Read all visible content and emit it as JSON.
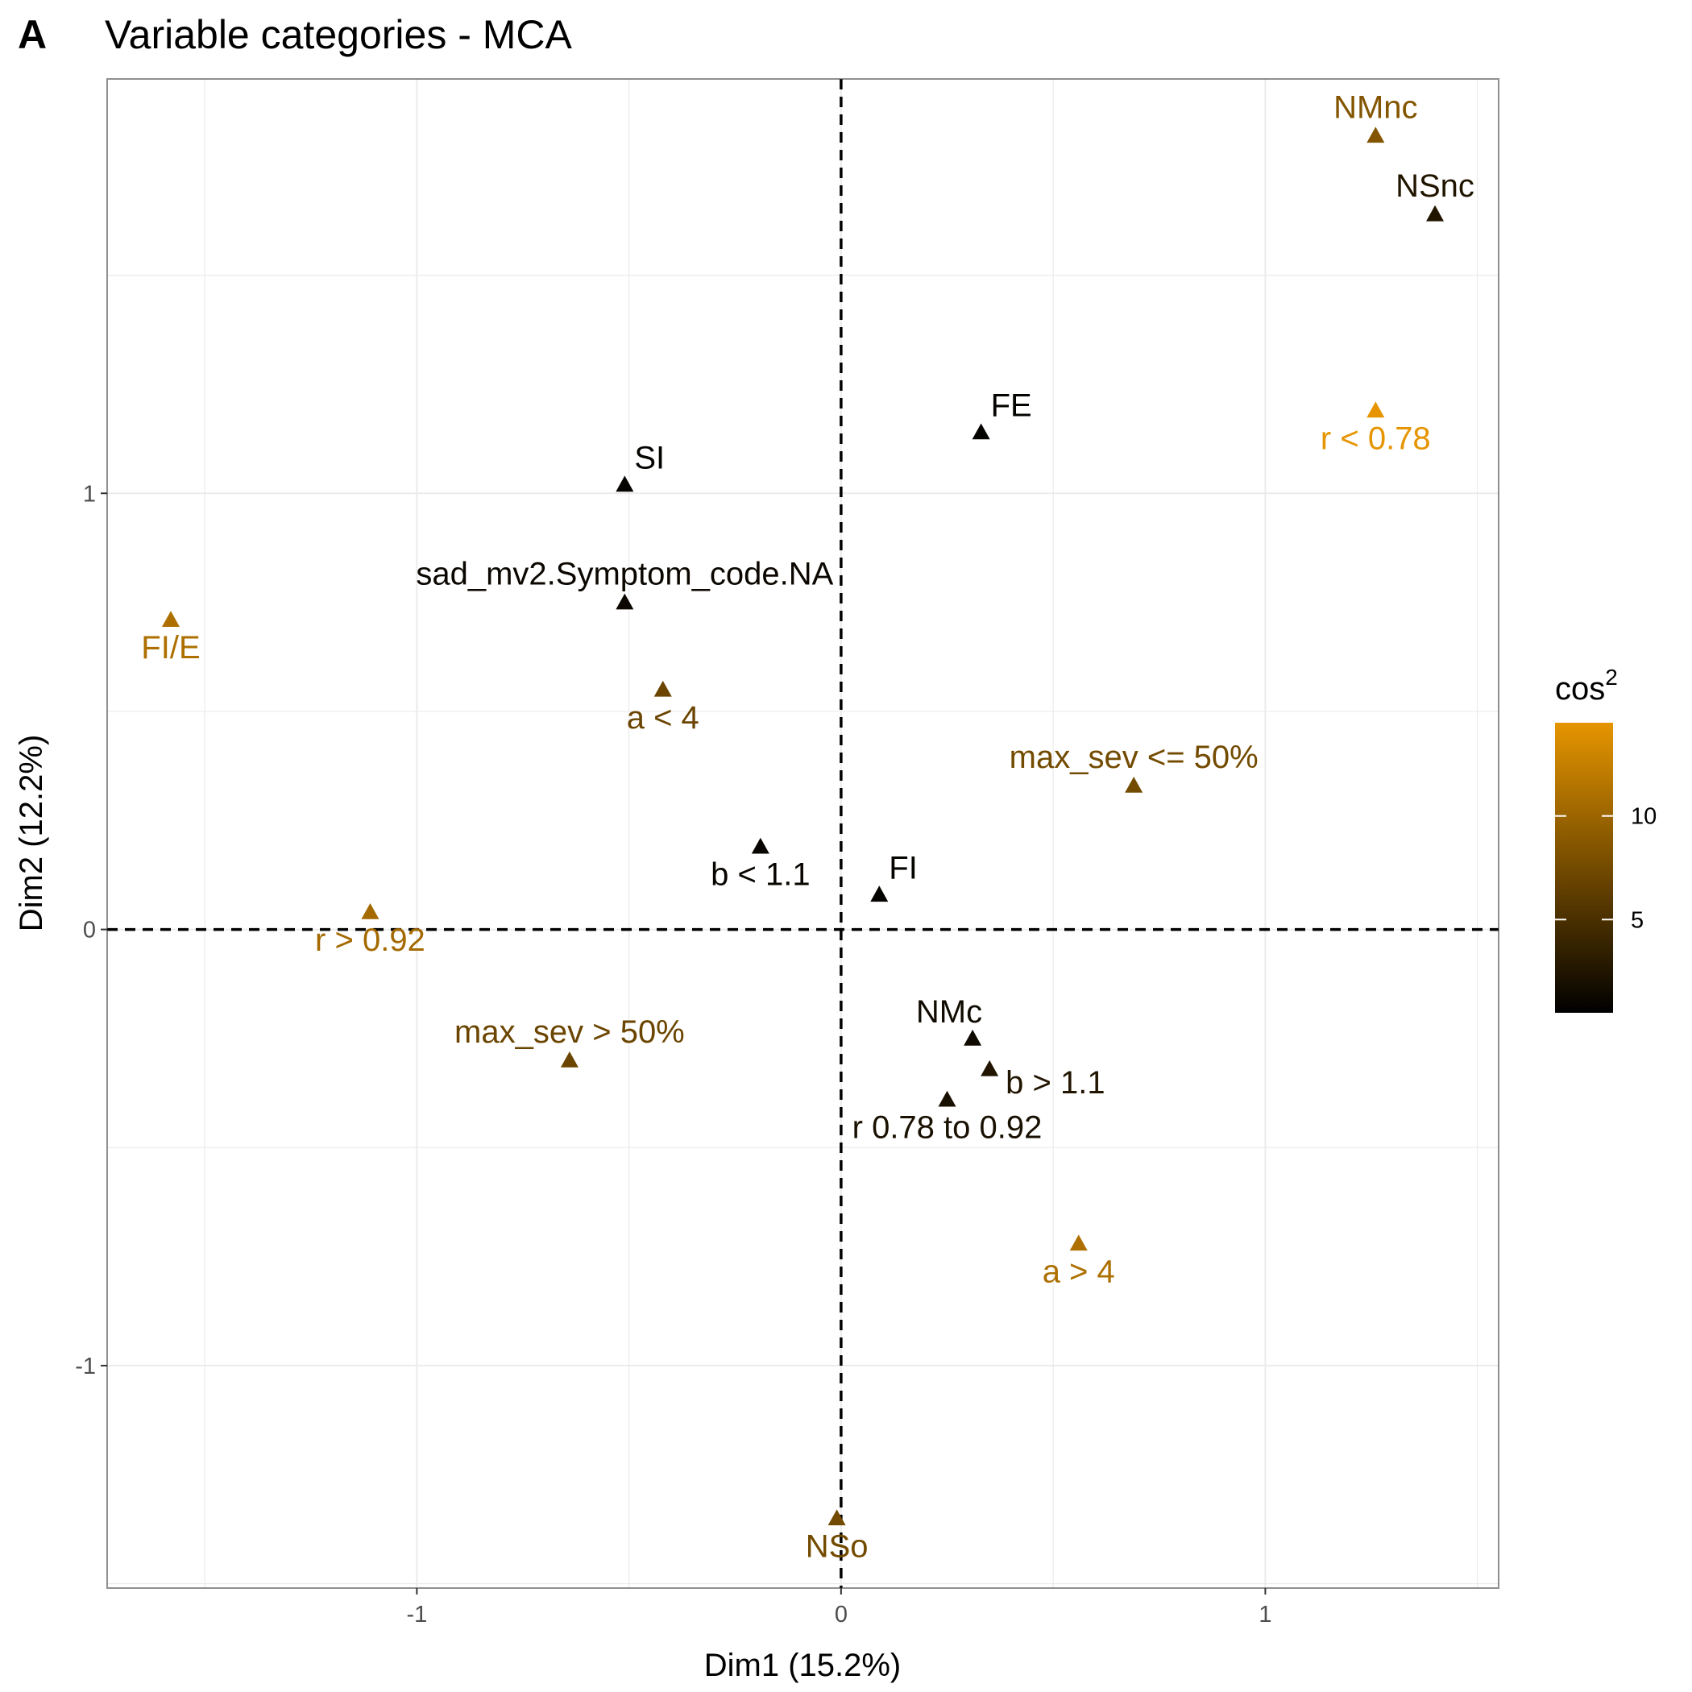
{
  "panel_tag": "A",
  "chart_data": {
    "type": "scatter",
    "title": "Variable categories - MCA",
    "xlabel": "Dim1 (15.2%)",
    "ylabel": "Dim2 (12.2%)",
    "xlim": [
      -1.73,
      1.55
    ],
    "ylim": [
      -1.51,
      1.95
    ],
    "xticks": [
      -1,
      0,
      1
    ],
    "yticks": [
      -1,
      0,
      1
    ],
    "tick_labels": {
      "x": [
        "-1",
        "0",
        "1"
      ],
      "y": [
        "-1",
        "0",
        "1"
      ]
    },
    "grid": true,
    "reference_lines": {
      "x": 0,
      "y": 0,
      "style": "dashed"
    },
    "marker": "triangle",
    "color_scale": {
      "title": "cos",
      "title_superscript": "2",
      "min": 0.5,
      "max": 14.5,
      "ticks": [
        5,
        10
      ],
      "low_color": "#000000",
      "high_color": "#e69500"
    },
    "points": [
      {
        "label": "NMnc",
        "x": 1.26,
        "y": 1.82,
        "cos2": 8.5,
        "label_pos": "above"
      },
      {
        "label": "NSnc",
        "x": 1.4,
        "y": 1.64,
        "cos2": 2.5,
        "label_pos": "above"
      },
      {
        "label": "r < 0.78",
        "x": 1.26,
        "y": 1.19,
        "cos2": 14.5,
        "label_pos": "below"
      },
      {
        "label": "FE",
        "x": 0.33,
        "y": 1.14,
        "cos2": 0.8,
        "label_pos": "above-right"
      },
      {
        "label": "SI",
        "x": -0.51,
        "y": 1.02,
        "cos2": 0.8,
        "label_pos": "above-right"
      },
      {
        "label": "sad_mv2.Symptom_code.NA",
        "x": -0.51,
        "y": 0.75,
        "cos2": 1.2,
        "label_pos": "above"
      },
      {
        "label": "FI/E",
        "x": -1.58,
        "y": 0.71,
        "cos2": 11.0,
        "label_pos": "below"
      },
      {
        "label": "a < 4",
        "x": -0.42,
        "y": 0.55,
        "cos2": 7.0,
        "label_pos": "below"
      },
      {
        "label": "max_sev <= 50%",
        "x": 0.69,
        "y": 0.33,
        "cos2": 7.5,
        "label_pos": "above"
      },
      {
        "label": "b < 1.1",
        "x": -0.19,
        "y": 0.19,
        "cos2": 1.0,
        "label_pos": "below"
      },
      {
        "label": "FI",
        "x": 0.09,
        "y": 0.08,
        "cos2": 0.8,
        "label_pos": "above-right"
      },
      {
        "label": "r > 0.92",
        "x": -1.11,
        "y": 0.04,
        "cos2": 10.5,
        "label_pos": "below"
      },
      {
        "label": "NMc",
        "x": 0.31,
        "y": -0.25,
        "cos2": 1.5,
        "label_pos": "above-left"
      },
      {
        "label": "max_sev > 50%",
        "x": -0.64,
        "y": -0.3,
        "cos2": 7.0,
        "label_pos": "above"
      },
      {
        "label": "b > 1.1",
        "x": 0.35,
        "y": -0.32,
        "cos2": 2.5,
        "label_pos": "below-right"
      },
      {
        "label": "r 0.78 to 0.92",
        "x": 0.25,
        "y": -0.39,
        "cos2": 2.0,
        "label_pos": "below"
      },
      {
        "label": "a > 4",
        "x": 0.56,
        "y": -0.72,
        "cos2": 11.0,
        "label_pos": "below"
      },
      {
        "label": "NSo",
        "x": -0.01,
        "y": -1.35,
        "cos2": 7.5,
        "label_pos": "below"
      }
    ]
  }
}
